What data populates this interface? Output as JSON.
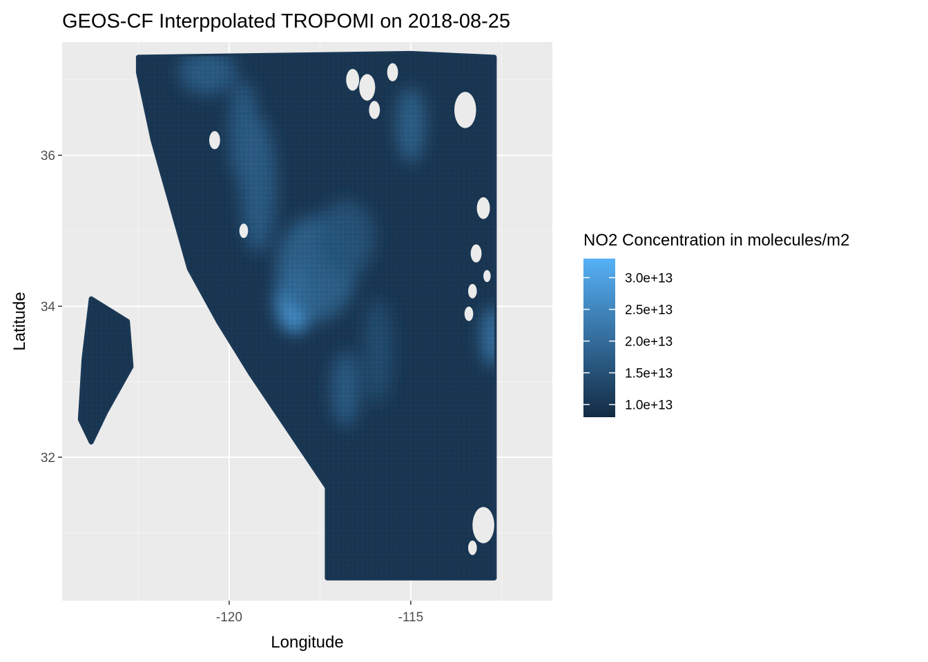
{
  "chart_data": {
    "type": "heatmap",
    "title": "GEOS-CF Interppolated TROPOMI on 2018-08-25",
    "xlabel": "Longitude",
    "ylabel": "Latitude",
    "xlim": [
      -124.6,
      -111.1
    ],
    "ylim": [
      30.1,
      37.5
    ],
    "x_ticks": [
      -120,
      -115
    ],
    "x_tick_labels": [
      "-120",
      "-115"
    ],
    "x_minor_ticks": [
      -122.5,
      -117.5,
      -112.5
    ],
    "y_ticks": [
      32,
      34,
      36
    ],
    "y_tick_labels": [
      "32",
      "34",
      "36"
    ],
    "y_minor_ticks": [
      31,
      33,
      35,
      37
    ],
    "grid": true,
    "legend": {
      "title": "NO2 Concentration in molecules/m2",
      "placement": "right",
      "breaks": [
        10000000000000.0,
        15000000000000.0,
        20000000000000.0,
        25000000000000.0,
        30000000000000.0
      ],
      "labels": [
        "1.0e+13",
        "1.5e+13",
        "2.0e+13",
        "2.5e+13",
        "3.0e+13"
      ],
      "range": [
        8000000000000.0,
        33000000000000.0
      ],
      "color_low": "#132B43",
      "color_high": "#56B1F7"
    },
    "colors": {
      "panel": "#EBEBEB",
      "grid_major": "#FFFFFF",
      "grid_minor": "#F5F5F5"
    },
    "main_region": {
      "outline": [
        [
          -122.5,
          37.3
        ],
        [
          -115.0,
          37.35
        ],
        [
          -112.7,
          37.3
        ],
        [
          -112.7,
          33.9
        ],
        [
          -112.7,
          30.4
        ],
        [
          -117.3,
          30.4
        ],
        [
          -117.3,
          31.6
        ],
        [
          -119.4,
          33.1
        ],
        [
          -120.3,
          33.8
        ],
        [
          -121.1,
          34.5
        ],
        [
          -122.1,
          36.2
        ],
        [
          -122.5,
          37.1
        ]
      ],
      "base_value": 10500000000000.0,
      "hotspots": [
        {
          "lon": -118.2,
          "lat": 34.1,
          "value": 31000000000000.0,
          "spread_lon": 0.5,
          "spread_lat": 0.45
        },
        {
          "lon": -117.6,
          "lat": 34.5,
          "value": 19000000000000.0,
          "spread_lon": 1.1,
          "spread_lat": 0.7
        },
        {
          "lon": -116.8,
          "lat": 34.9,
          "value": 16000000000000.0,
          "spread_lon": 0.8,
          "spread_lat": 0.5
        },
        {
          "lon": -119.2,
          "lat": 35.6,
          "value": 18000000000000.0,
          "spread_lon": 0.5,
          "spread_lat": 0.9
        },
        {
          "lon": -119.6,
          "lat": 36.3,
          "value": 18000000000000.0,
          "spread_lon": 0.4,
          "spread_lat": 0.7
        },
        {
          "lon": -120.6,
          "lat": 37.1,
          "value": 18000000000000.0,
          "spread_lon": 0.8,
          "spread_lat": 0.3
        },
        {
          "lon": -115.0,
          "lat": 36.4,
          "value": 19000000000000.0,
          "spread_lon": 0.4,
          "spread_lat": 0.5
        },
        {
          "lon": -116.8,
          "lat": 32.9,
          "value": 18000000000000.0,
          "spread_lon": 0.4,
          "spread_lat": 0.5
        },
        {
          "lon": -115.9,
          "lat": 33.4,
          "value": 15000000000000.0,
          "spread_lon": 0.4,
          "spread_lat": 0.7
        },
        {
          "lon": -112.75,
          "lat": 33.6,
          "value": 23000000000000.0,
          "spread_lon": 0.3,
          "spread_lat": 0.4
        }
      ]
    },
    "island_region": {
      "outline": [
        [
          -123.8,
          34.1
        ],
        [
          -122.8,
          33.8
        ],
        [
          -122.7,
          33.2
        ],
        [
          -123.4,
          32.6
        ],
        [
          -123.8,
          32.2
        ],
        [
          -124.1,
          32.5
        ],
        [
          -124.0,
          33.3
        ]
      ],
      "value": 10500000000000.0
    },
    "holes": [
      {
        "lon": -113.5,
        "lat": 36.6,
        "r": 0.3
      },
      {
        "lon": -116.6,
        "lat": 37.0,
        "r": 0.18
      },
      {
        "lon": -116.2,
        "lat": 36.9,
        "r": 0.22
      },
      {
        "lon": -115.5,
        "lat": 37.1,
        "r": 0.15
      },
      {
        "lon": -116.0,
        "lat": 36.6,
        "r": 0.15
      },
      {
        "lon": -113.0,
        "lat": 31.1,
        "r": 0.3
      },
      {
        "lon": -113.3,
        "lat": 30.8,
        "r": 0.12
      },
      {
        "lon": -113.0,
        "lat": 35.3,
        "r": 0.18
      },
      {
        "lon": -113.2,
        "lat": 34.7,
        "r": 0.15
      },
      {
        "lon": -113.3,
        "lat": 34.2,
        "r": 0.12
      },
      {
        "lon": -112.9,
        "lat": 34.4,
        "r": 0.1
      },
      {
        "lon": -113.4,
        "lat": 33.9,
        "r": 0.12
      },
      {
        "lon": -120.4,
        "lat": 36.2,
        "r": 0.15
      },
      {
        "lon": -119.6,
        "lat": 35.0,
        "r": 0.12
      }
    ]
  }
}
